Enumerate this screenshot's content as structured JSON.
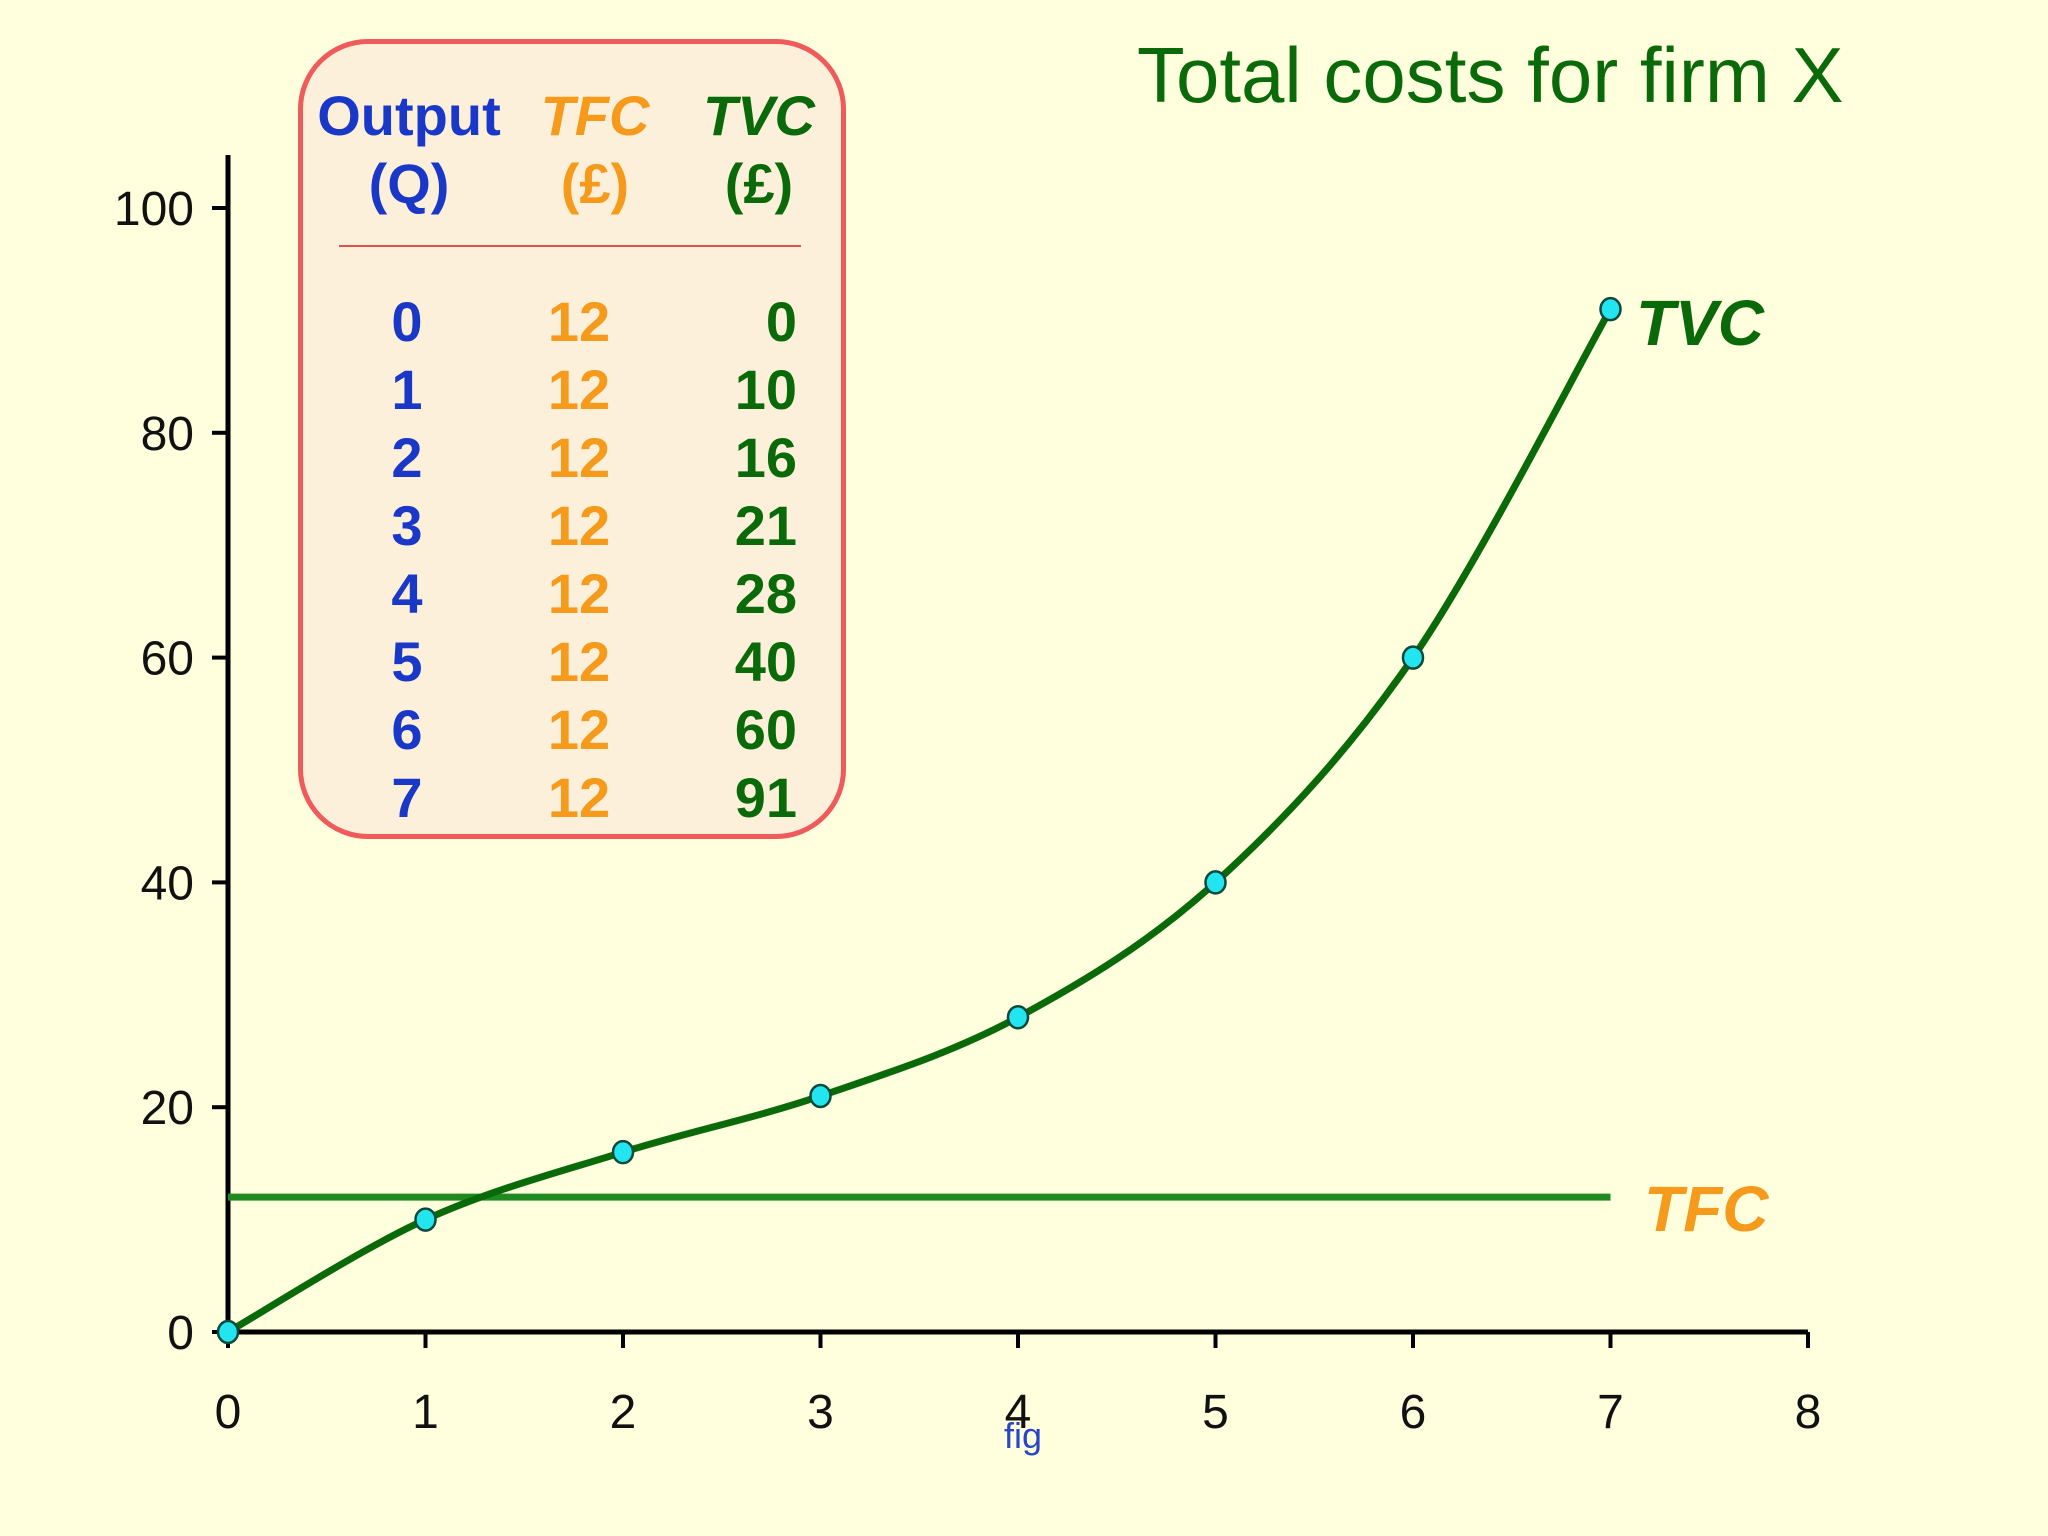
{
  "title": "Total costs for firm X",
  "figure_caption": "fig",
  "colors": {
    "background": "#FFFFDD",
    "tvc": "#0A6A0A",
    "tfc_label": "#F59A1A",
    "tfc_line": "#1F8A1F",
    "output": "#1A38C8",
    "marker": "#22E5F0",
    "table_border": "#EF5A5A"
  },
  "table": {
    "headers": {
      "output": [
        "Output",
        "(Q)"
      ],
      "tfc": [
        "TFC",
        "(£)"
      ],
      "tvc": [
        "TVC",
        "(£)"
      ]
    },
    "rows": [
      {
        "q": "0",
        "tfc": "12",
        "tvc": "0"
      },
      {
        "q": "1",
        "tfc": "12",
        "tvc": "10"
      },
      {
        "q": "2",
        "tfc": "12",
        "tvc": "16"
      },
      {
        "q": "3",
        "tfc": "12",
        "tvc": "21"
      },
      {
        "q": "4",
        "tfc": "12",
        "tvc": "28"
      },
      {
        "q": "5",
        "tfc": "12",
        "tvc": "40"
      },
      {
        "q": "6",
        "tfc": "12",
        "tvc": "60"
      },
      {
        "q": "7",
        "tfc": "12",
        "tvc": "91"
      }
    ]
  },
  "chart_data": {
    "type": "line",
    "title": "Total costs for firm X",
    "xlabel": "",
    "ylabel": "",
    "xlim": [
      0,
      8
    ],
    "ylim": [
      0,
      100
    ],
    "x_ticks": [
      0,
      1,
      2,
      3,
      4,
      5,
      6,
      7,
      8
    ],
    "y_ticks": [
      0,
      20,
      40,
      60,
      80,
      100
    ],
    "grid": false,
    "series": [
      {
        "name": "TVC",
        "x": [
          0,
          1,
          2,
          3,
          4,
          5,
          6,
          7
        ],
        "values": [
          0,
          10,
          16,
          21,
          28,
          40,
          60,
          91
        ],
        "markers": true,
        "color": "#0A6A0A"
      },
      {
        "name": "TFC",
        "x": [
          0,
          7
        ],
        "values": [
          12,
          12
        ],
        "markers": false,
        "color": "#1F8A1F"
      }
    ]
  }
}
